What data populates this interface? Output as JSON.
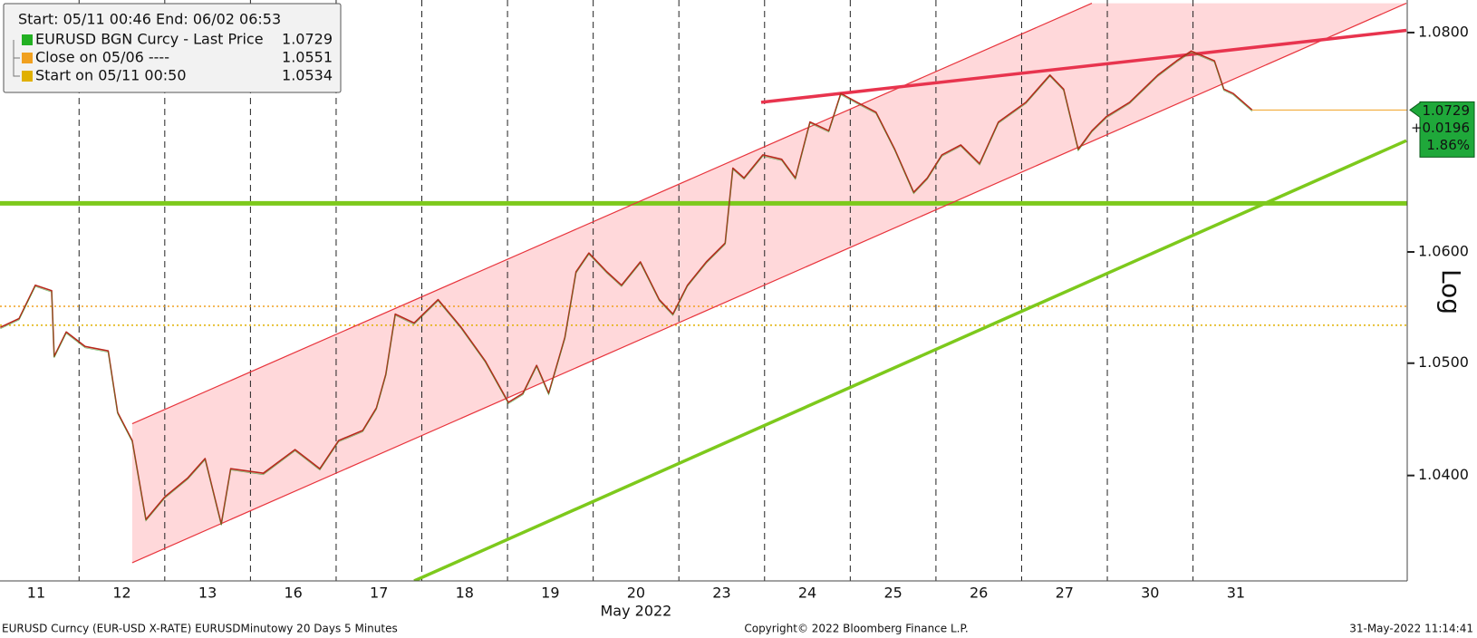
{
  "chart_data": {
    "type": "line",
    "log_scale": true,
    "log_label": "Log",
    "x_label": "May 2022",
    "header": "Start: 05/11 00:46 End: 06/02 06:53",
    "footer_left": "EURUSD Curncy (EUR-USD X-RATE) EURUSDMinutowy 20 Days 5 Minutes",
    "footer_center": "Copyright© 2022 Bloomberg Finance L.P.",
    "footer_right": "31-May-2022 11:14:41",
    "xlim": [
      0,
      16.5
    ],
    "xticks": [
      {
        "value": 0.5,
        "label": "11"
      },
      {
        "value": 1.5,
        "label": "12"
      },
      {
        "value": 2.5,
        "label": "13"
      },
      {
        "value": 3.5,
        "label": "16"
      },
      {
        "value": 4.5,
        "label": "17"
      },
      {
        "value": 5.5,
        "label": "18"
      },
      {
        "value": 6.5,
        "label": "19"
      },
      {
        "value": 7.5,
        "label": "20"
      },
      {
        "value": 8.5,
        "label": "23"
      },
      {
        "value": 9.5,
        "label": "24"
      },
      {
        "value": 10.5,
        "label": "25"
      },
      {
        "value": 11.5,
        "label": "26"
      },
      {
        "value": 12.5,
        "label": "27"
      },
      {
        "value": 13.5,
        "label": "30"
      },
      {
        "value": 14.5,
        "label": "31"
      }
    ],
    "ylim": [
      1.0307,
      1.083
    ],
    "yticks": [
      {
        "value": 1.04,
        "label": "1.0400"
      },
      {
        "value": 1.05,
        "label": "1.0500"
      },
      {
        "value": 1.06,
        "label": "1.0600"
      },
      {
        "value": 1.08,
        "label": "1.0800"
      }
    ],
    "series": [
      {
        "name": "EURUSD BGN Curcy - Last Price",
        "color": "#b8281c",
        "legend_color": "#22b022",
        "x": [
          0.08,
          0.3,
          0.49,
          0.68,
          0.71,
          0.85,
          1.07,
          1.34,
          1.45,
          1.62,
          1.78,
          2.0,
          2.27,
          2.47,
          2.66,
          2.77,
          3.15,
          3.52,
          3.81,
          4.03,
          4.31,
          4.47,
          4.58,
          4.69,
          4.91,
          5.19,
          5.46,
          5.74,
          6.01,
          6.18,
          6.34,
          6.48,
          6.67,
          6.8,
          6.95,
          7.16,
          7.33,
          7.55,
          7.77,
          7.93,
          8.1,
          8.32,
          8.54,
          8.63,
          8.76,
          8.98,
          9.2,
          9.36,
          9.53,
          9.75,
          9.89,
          10.08,
          10.3,
          10.52,
          10.74,
          10.9,
          11.07,
          11.29,
          11.51,
          11.73,
          12.05,
          12.33,
          12.49,
          12.66,
          12.82,
          12.99,
          13.26,
          13.59,
          13.81,
          13.98,
          14.25,
          14.36,
          14.47,
          14.69
        ],
        "values": [
          1.0532,
          1.054,
          1.057,
          1.0565,
          1.0506,
          1.0528,
          1.0515,
          1.0511,
          1.0456,
          1.0431,
          1.0361,
          1.0381,
          1.0398,
          1.0415,
          1.0357,
          1.0406,
          1.0402,
          1.0423,
          1.0406,
          1.0431,
          1.044,
          1.046,
          1.049,
          1.0544,
          1.0536,
          1.0557,
          1.0532,
          1.0502,
          1.0465,
          1.0473,
          1.0498,
          1.0473,
          1.0523,
          1.0582,
          1.0599,
          1.0582,
          1.057,
          1.0591,
          1.0557,
          1.0544,
          1.057,
          1.0591,
          1.0608,
          1.0676,
          1.0667,
          1.0688,
          1.0684,
          1.0667,
          1.0718,
          1.071,
          1.0744,
          1.0736,
          1.0727,
          1.0693,
          1.0654,
          1.0667,
          1.0688,
          1.0697,
          1.068,
          1.0718,
          1.0736,
          1.0761,
          1.0748,
          1.0693,
          1.071,
          1.0723,
          1.0736,
          1.0761,
          1.0774,
          1.0783,
          1.0774,
          1.0748,
          1.0744,
          1.0729
        ]
      }
    ],
    "last_change": {
      "value": 0.0196,
      "label": "+0.0196"
    },
    "last_change_pct": {
      "value": 1.86,
      "label": "1.86%"
    },
    "tag_color": "#1fa83a",
    "reference_lines": [
      {
        "name": "Close on 05/06 ----",
        "value": 1.0551,
        "color": "#f0a020"
      },
      {
        "name": "Start on 05/11 00:50",
        "value": 1.0534,
        "color": "#e0b000"
      },
      {
        "value": 1.0644,
        "color": "#7dc91c"
      }
    ],
    "channel": {
      "color": "#e8343c",
      "fill": "#ffd8da",
      "upper": {
        "x": [
          1.62,
          12.82
        ],
        "values": [
          1.0446,
          1.0827
        ]
      },
      "lower": {
        "x": [
          1.62,
          16.49
        ],
        "values": [
          1.0323,
          1.0827
        ]
      }
    },
    "trend_lines": [
      {
        "color": "#e8344e",
        "x": [
          8.96,
          16.49
        ],
        "values": [
          1.0736,
          1.0802
        ]
      },
      {
        "color": "#7dc91c",
        "x": [
          4.91,
          16.49
        ],
        "values": [
          1.0307,
          1.0701
        ]
      }
    ]
  }
}
